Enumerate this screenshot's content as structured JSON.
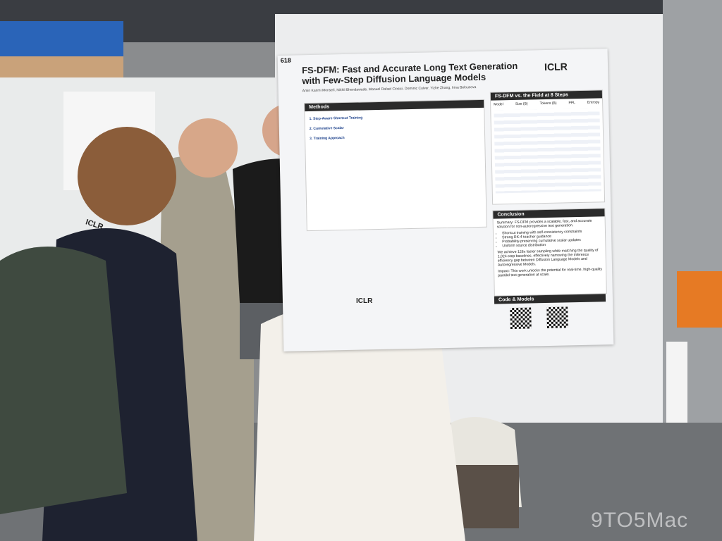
{
  "poster": {
    "number": "618",
    "title": "FS-DFM: Fast and Accurate Long Text Generation with Few-Step Diffusion Language Models",
    "authors": "Amin Karimi Monsefi, Nikhil Bhendawade, Manuel Rafael Ciosici, Dominic Culver, Yizhe Zhang, Irina Belousova",
    "logo": "ICLR",
    "methods": {
      "heading": "Methods",
      "steps": [
        "1. Step-Aware Shortcut Training",
        "2. Cumulative Scalar",
        "3. Training Approach"
      ]
    },
    "comparison": {
      "heading": "FS-DFM vs. the Field at 8 Steps",
      "columns": [
        "Model",
        "Size (B)",
        "Tokens (B)",
        "PPL",
        "Entropy"
      ]
    },
    "conclusion": {
      "heading": "Conclusion",
      "summary": "Summary: FS-DFM provides a scalable, fast, and accurate solution for non-autoregressive text generation.",
      "bullets": [
        "Shortcut training with self-consistency constraints",
        "Strong RK-4 teacher guidance",
        "Probability-preserving cumulative scalar updates",
        "Uniform source distribution"
      ],
      "result": "We achieve 128x faster sampling while matching the quality of 1,024-step baselines, effectively narrowing the inference efficiency gap between Diffusion Language Models and Autoregressive Models.",
      "impact": "Impact: This work unlocks the potential for real-time, high-quality parallel text generation at scale."
    },
    "code": "Code & Models"
  },
  "badge": "ICLR",
  "watermark": "9TO5Mac"
}
